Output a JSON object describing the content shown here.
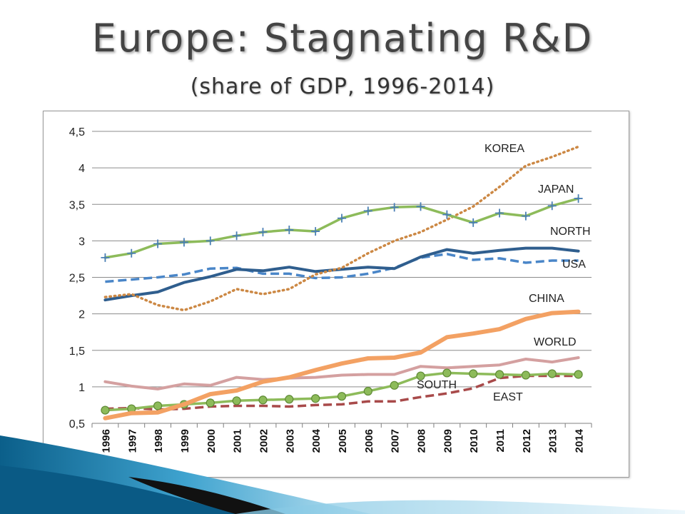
{
  "header": {
    "title": "Europe: Stagnating R&D",
    "subtitle": "(share of GDP, 1996-2014)"
  },
  "chart_data": {
    "type": "line",
    "title": "",
    "xlabel": "",
    "ylabel": "",
    "x": [
      "1996",
      "1997",
      "1998",
      "1999",
      "2000",
      "2001",
      "2002",
      "2003",
      "2004",
      "2005",
      "2006",
      "2007",
      "2008",
      "2009",
      "2010",
      "2011",
      "2012",
      "2013",
      "2014"
    ],
    "yticks": [
      "0,5",
      "1",
      "1,5",
      "2",
      "2,5",
      "3",
      "3,5",
      "4",
      "4,5"
    ],
    "ylim": [
      0.5,
      4.5
    ],
    "grid": true,
    "legend": "inline labels",
    "series": [
      {
        "name": "KOREA",
        "color": "#cc8844",
        "style": "dotted",
        "values": [
          2.23,
          2.27,
          2.12,
          2.05,
          2.17,
          2.34,
          2.27,
          2.34,
          2.54,
          2.63,
          2.83,
          3.0,
          3.12,
          3.29,
          3.47,
          3.74,
          4.03,
          4.15,
          4.29
        ]
      },
      {
        "name": "JAPAN",
        "color": "#8dbb5a",
        "style": "solid-plus",
        "values": [
          2.77,
          2.83,
          2.96,
          2.98,
          3.0,
          3.07,
          3.12,
          3.15,
          3.13,
          3.31,
          3.41,
          3.46,
          3.47,
          3.36,
          3.25,
          3.38,
          3.34,
          3.48,
          3.58
        ]
      },
      {
        "name": "NORTH",
        "color": "#2f5e8e",
        "style": "solid",
        "values": [
          2.19,
          2.25,
          2.3,
          2.43,
          2.51,
          2.61,
          2.59,
          2.64,
          2.58,
          2.61,
          2.64,
          2.62,
          2.78,
          2.88,
          2.83,
          2.87,
          2.9,
          2.9,
          2.86
        ]
      },
      {
        "name": "USA",
        "color": "#4a86c8",
        "style": "dashed",
        "values": [
          2.44,
          2.47,
          2.5,
          2.54,
          2.62,
          2.63,
          2.55,
          2.55,
          2.49,
          2.5,
          2.55,
          2.63,
          2.77,
          2.82,
          2.74,
          2.76,
          2.7,
          2.73,
          2.73
        ]
      },
      {
        "name": "CHINA",
        "color": "#f3a163",
        "style": "solid-thick",
        "values": [
          0.57,
          0.64,
          0.65,
          0.76,
          0.9,
          0.95,
          1.07,
          1.13,
          1.23,
          1.32,
          1.39,
          1.4,
          1.47,
          1.68,
          1.73,
          1.79,
          1.93,
          2.01,
          2.03
        ]
      },
      {
        "name": "WORLD",
        "color": "#d4a0a0",
        "style": "solid",
        "values": [
          1.07,
          1.01,
          0.97,
          1.04,
          1.02,
          1.13,
          1.1,
          1.12,
          1.13,
          1.16,
          1.17,
          1.17,
          1.28,
          1.26,
          1.28,
          1.3,
          1.38,
          1.34,
          1.4
        ]
      },
      {
        "name": "EAST",
        "color": "#a84a4a",
        "style": "dashed",
        "values": [
          0.7,
          0.71,
          0.69,
          0.7,
          0.73,
          0.74,
          0.74,
          0.73,
          0.75,
          0.76,
          0.8,
          0.8,
          0.86,
          0.91,
          0.98,
          1.12,
          1.15,
          1.15,
          1.15
        ]
      },
      {
        "name": "SOUTH",
        "color": "#8dbb5a",
        "style": "solid-circle",
        "values": [
          0.68,
          0.7,
          0.74,
          0.76,
          0.78,
          0.81,
          0.82,
          0.83,
          0.84,
          0.87,
          0.94,
          1.02,
          1.15,
          1.19,
          1.18,
          1.17,
          1.16,
          1.18,
          1.17
        ]
      }
    ]
  }
}
